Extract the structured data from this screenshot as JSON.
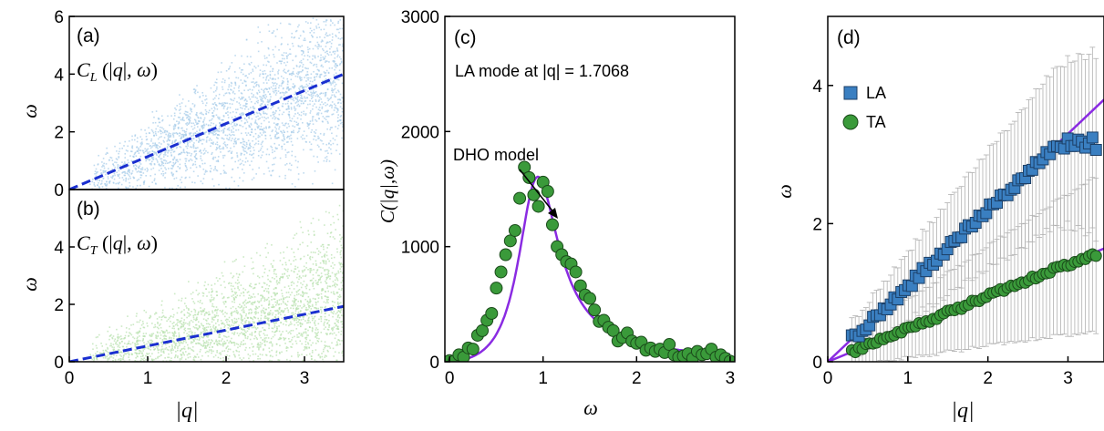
{
  "chart_data": [
    {
      "panel": "(a)",
      "type": "scatter",
      "annotation": "C_L(|q|,ω)",
      "xlabel": "|q|",
      "ylabel": "ω",
      "xlim": [
        0,
        3.5
      ],
      "ylim": [
        0,
        6
      ],
      "xticks": [],
      "yticks": [
        "0",
        "2",
        "4",
        "6"
      ],
      "cloud_color": "#a9cdea",
      "fit_color": "#1a2fd0",
      "fit_line": {
        "x": [
          0,
          3.5
        ],
        "y": [
          0,
          4.0
        ]
      }
    },
    {
      "panel": "(b)",
      "type": "scatter",
      "annotation": "C_T(|q|,ω)",
      "xlabel": "|q|",
      "ylabel": "ω",
      "xlim": [
        0,
        3.5
      ],
      "ylim": [
        0,
        6
      ],
      "xticks": [
        "0",
        "1",
        "2",
        "3"
      ],
      "yticks": [
        "0",
        "2",
        "4"
      ],
      "cloud_color": "#b9e2b0",
      "fit_color": "#1a2fd0",
      "fit_line": {
        "x": [
          0,
          3.5
        ],
        "y": [
          0,
          1.93
        ]
      }
    },
    {
      "panel": "(c)",
      "type": "scatter",
      "title": "LA mode at |q| = 1.7068",
      "annotation": "DHO model",
      "xlabel": "ω",
      "ylabel": "C(|q|,ω)",
      "xlim": [
        -0.05,
        3.05
      ],
      "ylim": [
        0,
        3000
      ],
      "xticks": [
        "0",
        "1",
        "2",
        "3"
      ],
      "yticks": [
        "0",
        "1000",
        "2000",
        "3000"
      ],
      "marker_color": "#3a9a3a",
      "line_color": "#8a2be2",
      "x": [
        0.0,
        0.05,
        0.1,
        0.15,
        0.2,
        0.25,
        0.3,
        0.35,
        0.4,
        0.45,
        0.5,
        0.55,
        0.6,
        0.65,
        0.7,
        0.75,
        0.8,
        0.85,
        0.9,
        0.95,
        1.0,
        1.05,
        1.1,
        1.15,
        1.2,
        1.25,
        1.3,
        1.35,
        1.4,
        1.45,
        1.5,
        1.55,
        1.6,
        1.65,
        1.7,
        1.75,
        1.8,
        1.85,
        1.9,
        1.95,
        2.0,
        2.05,
        2.1,
        2.15,
        2.2,
        2.25,
        2.3,
        2.35,
        2.4,
        2.45,
        2.5,
        2.55,
        2.6,
        2.65,
        2.7,
        2.75,
        2.8,
        2.85,
        2.9,
        2.95,
        3.0
      ],
      "y": [
        10,
        5,
        60,
        40,
        120,
        110,
        230,
        270,
        360,
        420,
        640,
        780,
        930,
        1050,
        1140,
        1420,
        1690,
        1600,
        1450,
        1350,
        1560,
        1480,
        1190,
        1000,
        930,
        870,
        850,
        780,
        660,
        580,
        550,
        450,
        350,
        360,
        300,
        270,
        180,
        210,
        250,
        180,
        160,
        170,
        100,
        120,
        90,
        110,
        80,
        150,
        60,
        40,
        50,
        70,
        30,
        90,
        60,
        70,
        110,
        40,
        60,
        30,
        5
      ],
      "fit": {
        "x0": 0.9,
        "amplitude": 1560,
        "gamma": 0.48
      }
    },
    {
      "panel": "(d)",
      "type": "scatter",
      "xlabel": "|q|",
      "ylabel": "ω",
      "xlim": [
        0,
        3.45
      ],
      "ylim": [
        0,
        5
      ],
      "xticks": [
        "0",
        "1",
        "2",
        "3"
      ],
      "yticks": [
        "0",
        "2",
        "4"
      ],
      "legend_position": "top-left",
      "line_color": "#8a2be2",
      "series": [
        {
          "name": "LA",
          "marker": "square",
          "color": "#3a7fc1",
          "slope": 1.1,
          "x": [
            0.3,
            3.35
          ],
          "y_plateau": 3.15
        },
        {
          "name": "TA",
          "marker": "circle",
          "color": "#3a9a3a",
          "slope": 0.475,
          "x": [
            0.3,
            3.35
          ]
        }
      ]
    }
  ]
}
